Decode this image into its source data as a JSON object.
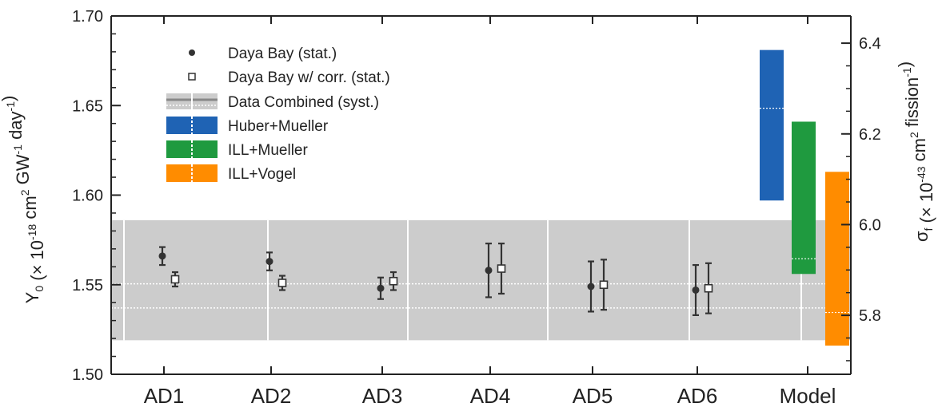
{
  "chart_data": {
    "type": "scatter",
    "categories": [
      "AD1",
      "AD2",
      "AD3",
      "AD4",
      "AD5",
      "AD6",
      "Model"
    ],
    "ylabel_left": {
      "main": "Y",
      "sub": "0",
      "text1": " (× 10",
      "sup1": "-18",
      "text2": " cm",
      "sup2": "2",
      "text3": " GW",
      "sup3": "-1",
      "text4": " day",
      "sup4": "-1",
      "text5": ")"
    },
    "ylabel_right": {
      "main": "σ",
      "sub": "f",
      "text1": " (× 10",
      "sup1": "-43",
      "text2": " cm",
      "sup2": "2",
      "text3": " fission",
      "sup3": "-1",
      "text4": ")"
    },
    "ylim_left": [
      1.5,
      1.7
    ],
    "ylim_right": [
      5.67,
      6.46
    ],
    "yticks_left": [
      "1.50",
      "1.55",
      "1.60",
      "1.65",
      "1.70"
    ],
    "yticks_right": [
      "5.8",
      "6.0",
      "6.2",
      "6.4"
    ],
    "legend": [
      {
        "label": "Daya Bay (stat.)",
        "marker": "filled-circle"
      },
      {
        "label": "Daya Bay w/ corr. (stat.)",
        "marker": "open-square"
      },
      {
        "label": "Data Combined (syst.)",
        "marker": "gray-band"
      },
      {
        "label": "Huber+Mueller",
        "color": "#1f63b4"
      },
      {
        "label": "ILL+Mueller",
        "color": "#1f9a3f"
      },
      {
        "label": "ILL+Vogel",
        "color": "#ff8c00"
      }
    ],
    "series": [
      {
        "name": "Daya Bay (stat.)",
        "values": [
          1.566,
          1.563,
          1.548,
          1.558,
          1.549,
          1.547
        ],
        "err": [
          0.005,
          0.005,
          0.006,
          0.015,
          0.014,
          0.014
        ]
      },
      {
        "name": "Daya Bay w/ corr. (stat.)",
        "values": [
          1.553,
          1.551,
          1.552,
          1.559,
          1.55,
          1.548
        ],
        "err": [
          0.004,
          0.004,
          0.005,
          0.014,
          0.014,
          0.014
        ]
      }
    ],
    "data_combined": {
      "band": [
        1.519,
        1.586
      ],
      "lines": [
        1.5505,
        1.537
      ]
    },
    "models": [
      {
        "name": "Huber+Mueller",
        "range": [
          1.597,
          1.681
        ],
        "center": 1.6485,
        "color": "#1f63b4"
      },
      {
        "name": "ILL+Mueller",
        "range": [
          1.556,
          1.641
        ],
        "center": 1.5645,
        "color": "#1f9a3f"
      },
      {
        "name": "ILL+Vogel",
        "range": [
          1.516,
          1.613
        ],
        "center": 1.5345,
        "color": "#ff8c00"
      }
    ],
    "colors": {
      "band": "#cccccc",
      "marker": "#333333",
      "axis": "#222222"
    }
  }
}
